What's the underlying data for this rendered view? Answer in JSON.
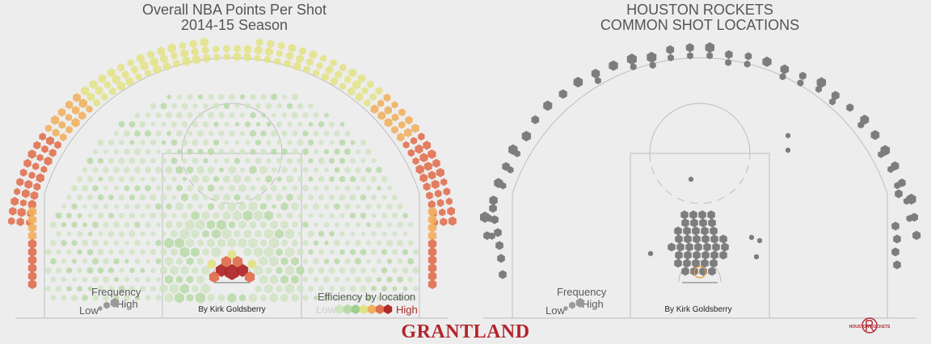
{
  "chart_data": [
    {
      "type": "hexbin-shot-chart",
      "title": "Overall NBA Points Per Shot",
      "subtitle": "2014-15 Season",
      "byline": "By Kirk Goldsberry",
      "frequency_legend": {
        "title": "Frequency",
        "low": "Low",
        "high": "High"
      },
      "efficiency_legend": {
        "title": "Efficiency by location",
        "low": "Low",
        "high": "High"
      },
      "efficiency_scale_colors": [
        "#cfe3c2",
        "#b6d9a6",
        "#9fcf8c",
        "#e2e28a",
        "#f0b060",
        "#e07050",
        "#b02a2a"
      ],
      "zones": [
        {
          "zone": "restricted area",
          "frequency": "high",
          "efficiency": "high"
        },
        {
          "zone": "paint (non-RA)",
          "frequency": "medium",
          "efficiency": "low"
        },
        {
          "zone": "mid-range",
          "frequency": "medium",
          "efficiency": "low"
        },
        {
          "zone": "corner three",
          "frequency": "high",
          "efficiency": "high"
        },
        {
          "zone": "above-the-break three",
          "frequency": "high",
          "efficiency": "medium-high"
        }
      ]
    },
    {
      "type": "hexbin-shot-chart",
      "title": "HOUSTON ROCKETS",
      "subtitle": "COMMON SHOT LOCATIONS",
      "byline": "By Kirk Goldsberry",
      "frequency_legend": {
        "title": "Frequency",
        "low": "Low",
        "high": "High"
      },
      "color": "#7d7d7d",
      "zones": [
        {
          "zone": "restricted area",
          "frequency": "high"
        },
        {
          "zone": "paint (non-RA)",
          "frequency": "medium"
        },
        {
          "zone": "mid-range",
          "frequency": "very low"
        },
        {
          "zone": "corner three",
          "frequency": "high"
        },
        {
          "zone": "above-the-break three",
          "frequency": "high"
        }
      ]
    }
  ],
  "brand": "GRANTLAND",
  "logo": {
    "text": "HOUSTON ROCKETS"
  }
}
